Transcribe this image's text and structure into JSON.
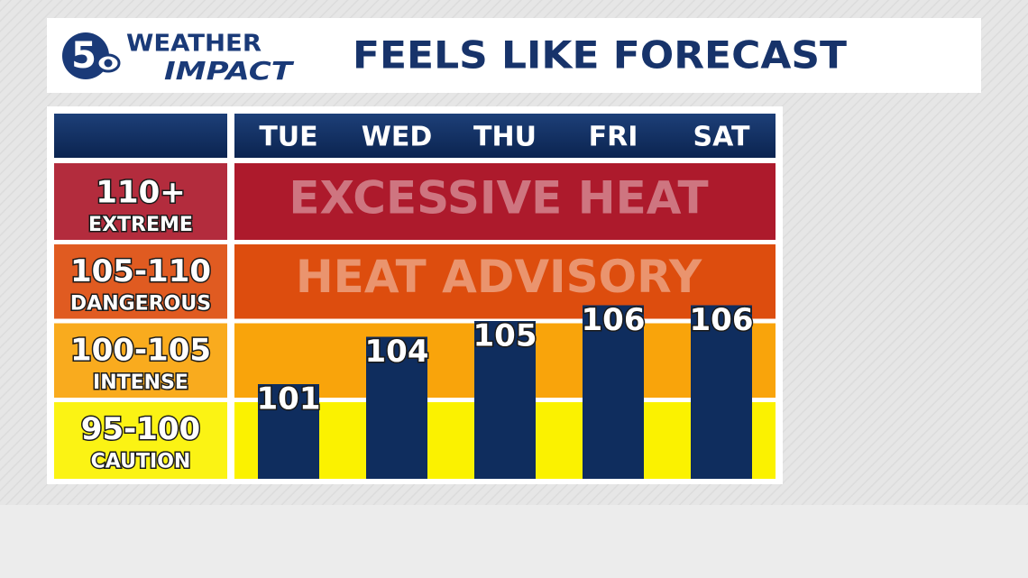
{
  "logo": {
    "number": "5",
    "line1": "WEATHER",
    "line2": "IMPACT"
  },
  "chart_data": {
    "type": "bar",
    "title": "FEELS LIKE FORECAST",
    "categories": [
      "TUE",
      "WED",
      "THU",
      "FRI",
      "SAT"
    ],
    "values": [
      101,
      104,
      105,
      106,
      106
    ],
    "color": "#0f2d5e",
    "ylim": [
      95,
      115
    ],
    "yticks": [
      95,
      100,
      105,
      110
    ],
    "bands": [
      {
        "label": "95-100",
        "name": "CAUTION",
        "color": "#fbf200"
      },
      {
        "label": "100-105",
        "name": "INTENSE",
        "color": "#f9a40b"
      },
      {
        "label": "105-110",
        "name": "DANGEROUS",
        "color": "#dd4d0e",
        "text": "HEAT ADVISORY"
      },
      {
        "label": "110+",
        "name": "EXTREME",
        "color": "#ad1a2c",
        "text": "EXCESSIVE HEAT"
      }
    ]
  }
}
